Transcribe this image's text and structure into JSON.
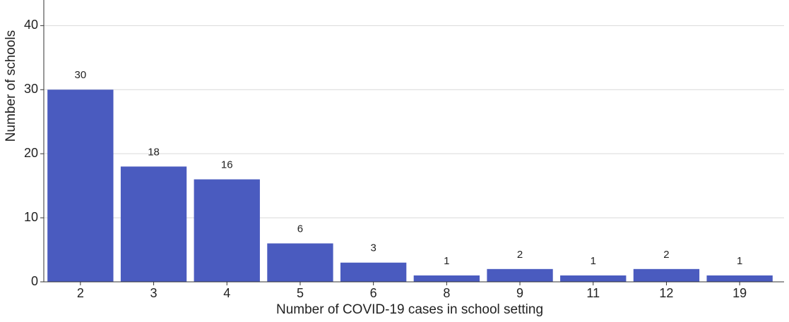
{
  "chart_data": {
    "type": "bar",
    "x_label": "Number of COVID-19 cases in school setting",
    "y_label": "Number of schools",
    "categories": [
      "2",
      "3",
      "4",
      "5",
      "6",
      "8",
      "9",
      "11",
      "12",
      "19"
    ],
    "values": [
      30,
      18,
      16,
      6,
      3,
      1,
      2,
      1,
      2,
      1
    ],
    "color": "#4a5bbf",
    "ylim": [
      0,
      44
    ],
    "yticks": [
      0,
      10,
      20,
      30,
      40
    ],
    "grid": true
  }
}
